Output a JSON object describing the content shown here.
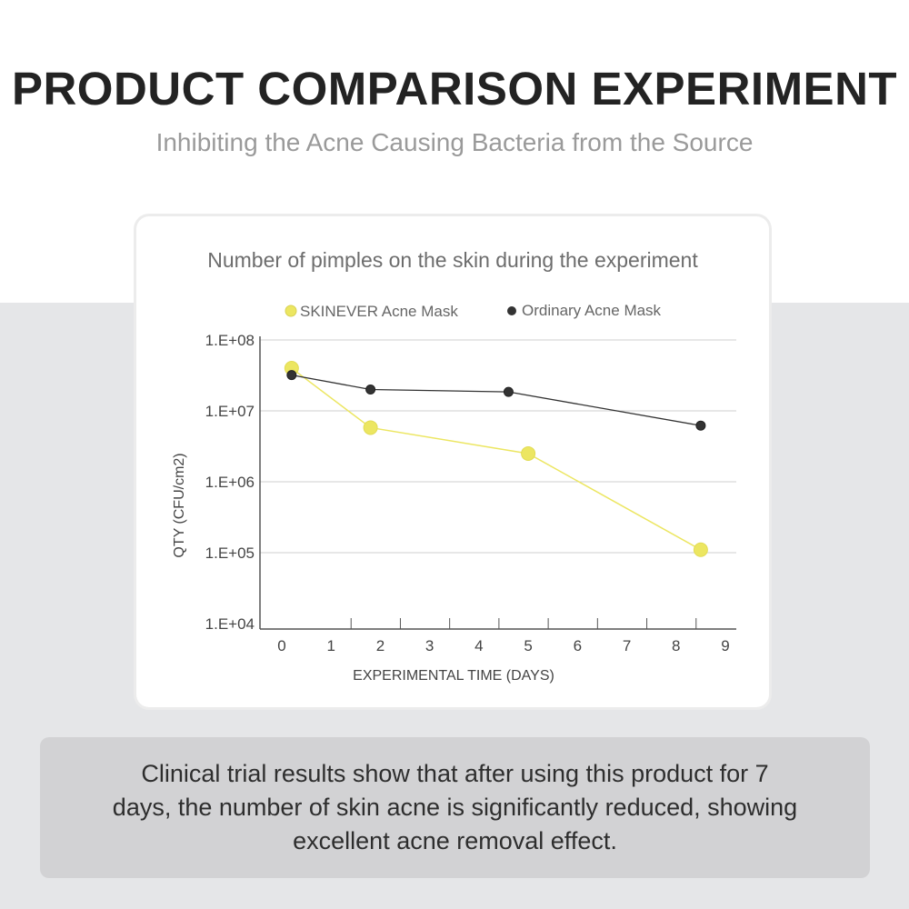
{
  "header": {
    "title": "PRODUCT COMPARISON EXPERIMENT",
    "subtitle": "Inhibiting the Acne Causing Bacteria from the Source"
  },
  "chart_data": {
    "type": "line",
    "title": "Number of pimples on the skin during the experiment",
    "xlabel": "EXPERIMENTAL TIME (DAYS)",
    "ylabel": "QTY  (CFU/cm2)",
    "y_scale": "log",
    "ylim": [
      10000,
      100000000
    ],
    "xlim": [
      0,
      9
    ],
    "x_ticks": [
      0,
      1,
      2,
      3,
      4,
      5,
      6,
      7,
      8,
      9
    ],
    "y_ticks": [
      {
        "value": 100000000,
        "label": "1.E+08"
      },
      {
        "value": 10000000,
        "label": "1.E+07"
      },
      {
        "value": 1000000,
        "label": "1.E+06"
      },
      {
        "value": 100000,
        "label": "1.E+05"
      },
      {
        "value": 10000,
        "label": "1.E+04"
      }
    ],
    "grid": true,
    "legend_position": "top",
    "series": [
      {
        "name": "SKINEVER Acne Mask",
        "color": "#ece661",
        "points": [
          {
            "x": 0.2,
            "y": 40000000
          },
          {
            "x": 1.8,
            "y": 5800000
          },
          {
            "x": 5.0,
            "y": 2500000
          },
          {
            "x": 8.5,
            "y": 110000
          }
        ]
      },
      {
        "name": "Ordinary Acne Mask",
        "color": "#333333",
        "points": [
          {
            "x": 0.2,
            "y": 32000000
          },
          {
            "x": 1.8,
            "y": 20000000
          },
          {
            "x": 4.6,
            "y": 18500000
          },
          {
            "x": 8.5,
            "y": 6200000
          }
        ]
      }
    ]
  },
  "note": {
    "text": "Clinical trial results show that after using this product for 7 days, the number of skin acne is significantly reduced, showing excellent acne removal effect."
  }
}
